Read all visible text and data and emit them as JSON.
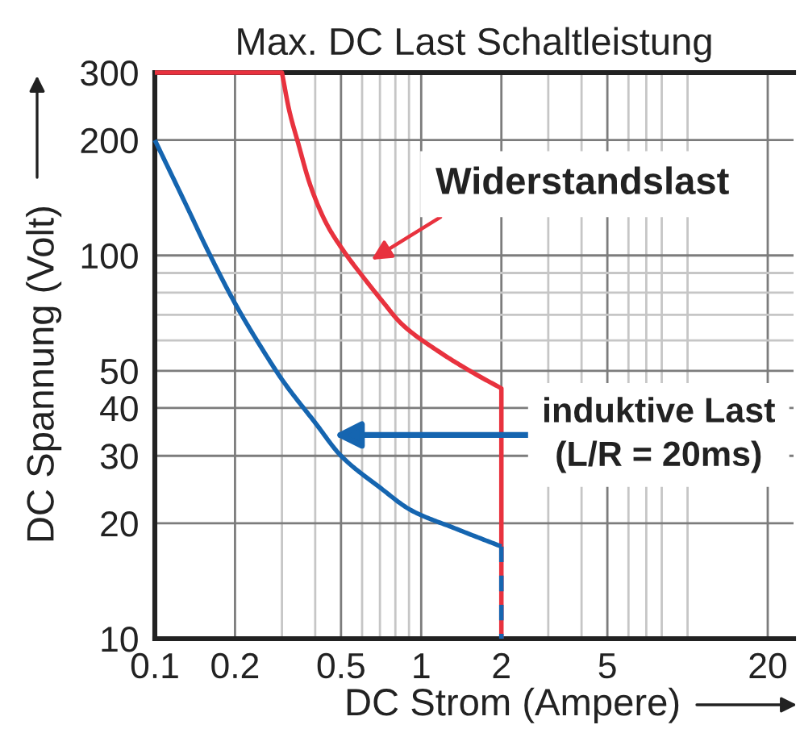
{
  "chart_data": {
    "type": "line",
    "title": "Max. DC Last Schaltleistung",
    "xlabel": "DC Strom (Ampere)",
    "ylabel": "DC Spannung (Volt)",
    "log": "xy",
    "grid": true,
    "line_style": "solid",
    "xlim": [
      0.1,
      25
    ],
    "xticks": [
      0.1,
      0.2,
      {
        "value": 0.3,
        "label": null
      },
      {
        "value": 0.4,
        "label": null
      },
      0.5,
      {
        "value": 0.6,
        "label": null
      },
      {
        "value": 0.7,
        "label": null
      },
      {
        "value": 0.8,
        "label": null
      },
      {
        "value": 0.9,
        "label": null
      },
      1,
      2,
      {
        "value": 3,
        "label": null
      },
      {
        "value": 4,
        "label": null
      },
      5,
      {
        "value": 6,
        "label": null
      },
      {
        "value": 7,
        "label": null
      },
      {
        "value": 8,
        "label": null
      },
      {
        "value": 10,
        "label": null
      },
      20
    ],
    "ylim": [
      10,
      300
    ],
    "yticks": [
      10,
      20,
      30,
      40,
      50,
      {
        "value": 60,
        "label": null
      },
      {
        "value": 70,
        "label": null
      },
      {
        "value": 80,
        "label": null
      },
      {
        "value": 90,
        "label": null
      },
      100,
      200,
      300
    ],
    "series": [
      {
        "color": "#e8323e",
        "x": [
          0.1,
          0.3,
          0.32,
          0.344,
          0.384,
          0.441,
          0.51,
          0.62,
          0.72,
          0.84,
          1.17,
          1.6,
          2,
          2
        ],
        "values": [
          300,
          300,
          238,
          198,
          152,
          121,
          103,
          86,
          75.5,
          66.5,
          56,
          49,
          45,
          10
        ]
      },
      {
        "color": "#1565b0",
        "x": [
          0.1,
          0.132,
          0.158,
          0.2,
          0.253,
          0.303,
          0.4,
          0.5,
          0.7,
          0.92,
          1.34,
          2
        ],
        "values": [
          200,
          134,
          103,
          75,
          57,
          47,
          36.6,
          30,
          24.8,
          21.6,
          19.4,
          17.4
        ]
      },
      {
        "color": "#1565b0",
        "line_style": "dashed",
        "x": [
          2,
          2
        ],
        "values": [
          17.4,
          10
        ]
      }
    ],
    "annotations": [
      {
        "text": "Widerstandslast",
        "x": 0.57,
        "y": 92
      },
      {
        "text": "induktive Last\n(L/R = 20ms)",
        "x": 0.47,
        "y": 34
      }
    ]
  }
}
